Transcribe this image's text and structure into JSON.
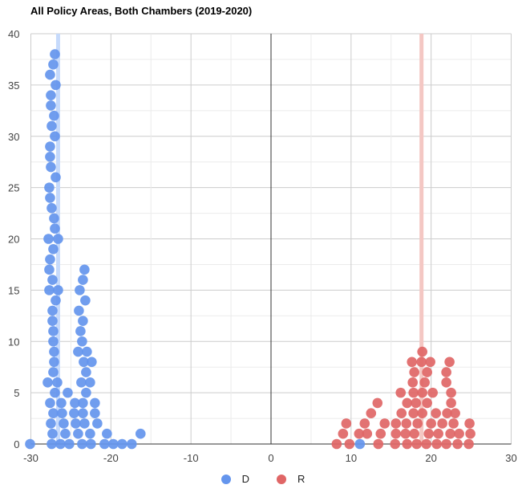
{
  "chart_data": {
    "type": "scatter",
    "title": "All Policy Areas, Both Chambers (2019-2020)",
    "xlabel": "",
    "ylabel": "",
    "xlim": [
      -30,
      30
    ],
    "ylim": [
      0,
      40
    ],
    "x_ticks": [
      -30,
      -20,
      -10,
      0,
      10,
      20,
      30
    ],
    "y_ticks": [
      0,
      5,
      10,
      15,
      20,
      25,
      30,
      35,
      40
    ],
    "grid": true,
    "legend_position": "bottom",
    "series": [
      {
        "name": "D",
        "color": "#6495ED",
        "mean_line_x": -26.6,
        "mean_line_color": "#C6DAFB",
        "points": [
          [
            -30.1,
            0
          ],
          [
            -27.4,
            0
          ],
          [
            -26.3,
            0
          ],
          [
            -25.2,
            0
          ],
          [
            -23.6,
            0
          ],
          [
            -22.5,
            0
          ],
          [
            -20.8,
            0
          ],
          [
            -19.7,
            0
          ],
          [
            -18.6,
            0
          ],
          [
            -17.4,
            0
          ],
          [
            11.1,
            0
          ],
          [
            -27.3,
            1
          ],
          [
            -25.7,
            1
          ],
          [
            -24.1,
            1
          ],
          [
            -22.6,
            1
          ],
          [
            -20.5,
            1
          ],
          [
            -16.3,
            1
          ],
          [
            -27.5,
            2
          ],
          [
            -25.9,
            2
          ],
          [
            -24.4,
            2
          ],
          [
            -23.3,
            2
          ],
          [
            -21.7,
            2
          ],
          [
            -27.2,
            3
          ],
          [
            -26.1,
            3
          ],
          [
            -24.6,
            3
          ],
          [
            -23.5,
            3
          ],
          [
            -22.0,
            3
          ],
          [
            -27.6,
            4
          ],
          [
            -26.2,
            4
          ],
          [
            -24.5,
            4
          ],
          [
            -23.5,
            4
          ],
          [
            -22.0,
            4
          ],
          [
            -27.0,
            5
          ],
          [
            -25.4,
            5
          ],
          [
            -23.1,
            5
          ],
          [
            -27.9,
            6
          ],
          [
            -26.7,
            6
          ],
          [
            -23.7,
            6
          ],
          [
            -22.6,
            6
          ],
          [
            -27.2,
            7
          ],
          [
            -23.1,
            7
          ],
          [
            -27.1,
            8
          ],
          [
            -23.4,
            8
          ],
          [
            -22.4,
            8
          ],
          [
            -27.1,
            9
          ],
          [
            -24.1,
            9
          ],
          [
            -23.0,
            9
          ],
          [
            -27.2,
            10
          ],
          [
            -23.6,
            10
          ],
          [
            -27.2,
            11
          ],
          [
            -23.8,
            11
          ],
          [
            -27.3,
            12
          ],
          [
            -23.5,
            12
          ],
          [
            -27.3,
            13
          ],
          [
            -24.0,
            13
          ],
          [
            -26.9,
            14
          ],
          [
            -23.2,
            14
          ],
          [
            -27.7,
            15
          ],
          [
            -26.6,
            15
          ],
          [
            -23.9,
            15
          ],
          [
            -27.3,
            16
          ],
          [
            -23.5,
            16
          ],
          [
            -27.7,
            17
          ],
          [
            -23.3,
            17
          ],
          [
            -27.6,
            18
          ],
          [
            -27.2,
            19
          ],
          [
            -27.8,
            20
          ],
          [
            -26.6,
            20
          ],
          [
            -27.0,
            21
          ],
          [
            -27.1,
            22
          ],
          [
            -27.4,
            23
          ],
          [
            -27.6,
            24
          ],
          [
            -27.7,
            25
          ],
          [
            -26.9,
            26
          ],
          [
            -27.5,
            27
          ],
          [
            -27.6,
            28
          ],
          [
            -27.6,
            29
          ],
          [
            -27.0,
            30
          ],
          [
            -27.4,
            31
          ],
          [
            -27.1,
            32
          ],
          [
            -27.5,
            33
          ],
          [
            -27.5,
            34
          ],
          [
            -26.9,
            35
          ],
          [
            -27.6,
            36
          ],
          [
            -27.2,
            37
          ],
          [
            -27.0,
            38
          ]
        ]
      },
      {
        "name": "R",
        "color": "#E06666",
        "mean_line_x": 18.8,
        "mean_line_color": "#F4C7C3",
        "points": [
          [
            8.2,
            0
          ],
          [
            9.8,
            0
          ],
          [
            13.4,
            0
          ],
          [
            15.5,
            0
          ],
          [
            17.0,
            0
          ],
          [
            18.2,
            0
          ],
          [
            19.4,
            0
          ],
          [
            20.7,
            0
          ],
          [
            21.9,
            0
          ],
          [
            23.3,
            0
          ],
          [
            24.7,
            0
          ],
          [
            9.0,
            1
          ],
          [
            11.0,
            1
          ],
          [
            12.0,
            1
          ],
          [
            13.7,
            1
          ],
          [
            15.6,
            1
          ],
          [
            16.8,
            1
          ],
          [
            17.9,
            1
          ],
          [
            19.7,
            1
          ],
          [
            20.9,
            1
          ],
          [
            22.4,
            1
          ],
          [
            23.5,
            1
          ],
          [
            24.9,
            1
          ],
          [
            9.4,
            2
          ],
          [
            11.7,
            2
          ],
          [
            14.2,
            2
          ],
          [
            15.6,
            2
          ],
          [
            16.9,
            2
          ],
          [
            18.3,
            2
          ],
          [
            20.0,
            2
          ],
          [
            21.4,
            2
          ],
          [
            22.8,
            2
          ],
          [
            24.8,
            2
          ],
          [
            12.5,
            3
          ],
          [
            16.3,
            3
          ],
          [
            17.8,
            3
          ],
          [
            18.9,
            3
          ],
          [
            20.6,
            3
          ],
          [
            22.0,
            3
          ],
          [
            23.0,
            3
          ],
          [
            13.3,
            4
          ],
          [
            17.0,
            4
          ],
          [
            18.1,
            4
          ],
          [
            19.5,
            4
          ],
          [
            22.5,
            4
          ],
          [
            16.2,
            5
          ],
          [
            17.8,
            5
          ],
          [
            18.9,
            5
          ],
          [
            20.2,
            5
          ],
          [
            22.5,
            5
          ],
          [
            17.7,
            6
          ],
          [
            19.2,
            6
          ],
          [
            21.9,
            6
          ],
          [
            17.9,
            7
          ],
          [
            19.5,
            7
          ],
          [
            21.9,
            7
          ],
          [
            17.6,
            8
          ],
          [
            18.8,
            8
          ],
          [
            19.9,
            8
          ],
          [
            22.3,
            8
          ],
          [
            18.9,
            9
          ]
        ]
      }
    ]
  },
  "title": "All Policy Areas, Both Chambers (2019-2020)",
  "legend": [
    {
      "label": "D",
      "color": "#6495ED"
    },
    {
      "label": "R",
      "color": "#E06666"
    }
  ]
}
